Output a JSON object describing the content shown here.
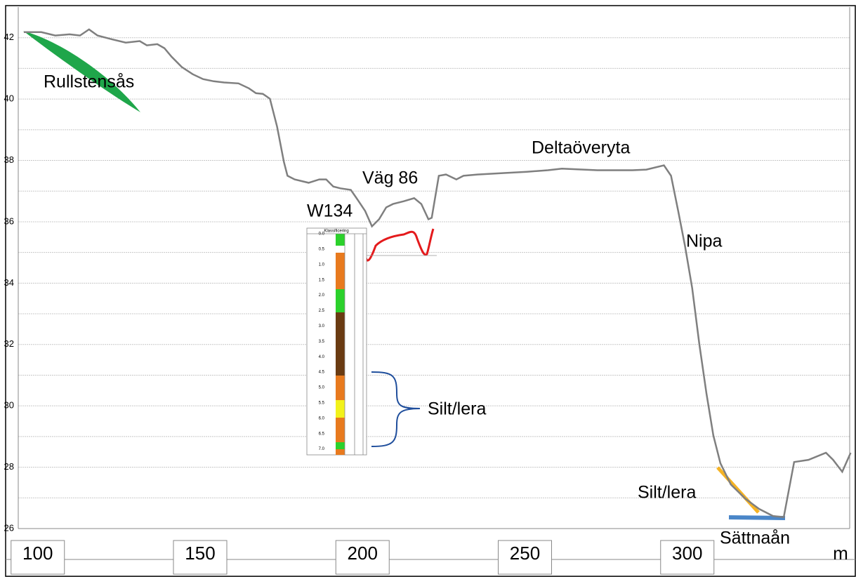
{
  "chart_data": {
    "type": "line",
    "x": [
      95.7,
      101.1,
      105.4,
      109.8,
      113.0,
      115.8,
      118.4,
      122.8,
      127.1,
      131.4,
      133.6,
      136.8,
      139.0,
      141.2,
      144.4,
      147.7,
      150.9,
      154.2,
      157.4,
      161.8,
      165.0,
      167.2,
      169.3,
      171.5,
      173.7,
      175.8,
      176.9,
      179.1,
      183.4,
      186.7,
      188.8,
      191.0,
      193.2,
      196.4,
      198.6,
      200.8,
      202.9,
      205.1,
      207.3,
      209.4,
      212.7,
      215.9,
      218.1,
      220.3,
      221.3,
      223.5,
      225.7,
      228.9,
      231.1,
      235.4,
      244.1,
      250.6,
      257.1,
      261.4,
      272.3,
      283.1,
      287.4,
      292.8,
      295.0,
      297.2,
      299.3,
      301.5,
      303.7,
      305.9,
      308.0,
      310.2,
      313.4,
      317.8,
      322.1,
      326.4,
      329.7,
      332.9,
      337.3,
      342.7,
      344.9,
      347.7,
      350.3
    ],
    "values": [
      42.18,
      42.18,
      42.07,
      42.11,
      42.07,
      42.27,
      42.07,
      41.95,
      41.84,
      41.89,
      41.75,
      41.79,
      41.66,
      41.38,
      41.04,
      40.81,
      40.65,
      40.58,
      40.54,
      40.51,
      40.35,
      40.19,
      40.17,
      40.01,
      39.1,
      37.95,
      37.5,
      37.38,
      37.27,
      37.38,
      37.38,
      37.15,
      37.09,
      37.04,
      36.7,
      36.35,
      35.85,
      36.08,
      36.47,
      36.58,
      36.67,
      36.77,
      36.58,
      36.08,
      36.13,
      37.5,
      37.54,
      37.38,
      37.5,
      37.54,
      37.59,
      37.63,
      37.68,
      37.73,
      37.68,
      37.68,
      37.7,
      37.84,
      37.5,
      36.35,
      35.21,
      33.84,
      32.01,
      30.41,
      29.04,
      28.13,
      27.44,
      26.98,
      26.64,
      26.41,
      26.37,
      28.17,
      28.24,
      28.47,
      28.24,
      27.85,
      28.47
    ],
    "color": "#7f7f7f",
    "xlim": [
      94,
      350
    ],
    "xticks": [
      100,
      150,
      200,
      250,
      300
    ],
    "x_unit": "m",
    "ylim": [
      26,
      43
    ],
    "yticks": [
      26,
      28,
      30,
      32,
      34,
      36,
      38,
      40,
      42
    ],
    "yminor": [
      27,
      29,
      31,
      33,
      35,
      37,
      39,
      41
    ],
    "grid": true,
    "annotations": [
      "Rullstensås",
      "Väg 86",
      "W134",
      "Deltaöveryta",
      "Nipa",
      "Silt/lera",
      "Silt/lera",
      "Sättnaån"
    ],
    "borehole": {
      "header": "Klassificering",
      "depths": [
        "0.0",
        "0.5",
        "1.0",
        "1.5",
        "2.0",
        "2.5",
        "3.0",
        "3.5",
        "4.0",
        "4.5",
        "5.0",
        "5.5",
        "6.0",
        "6.5",
        "7.0"
      ]
    }
  }
}
